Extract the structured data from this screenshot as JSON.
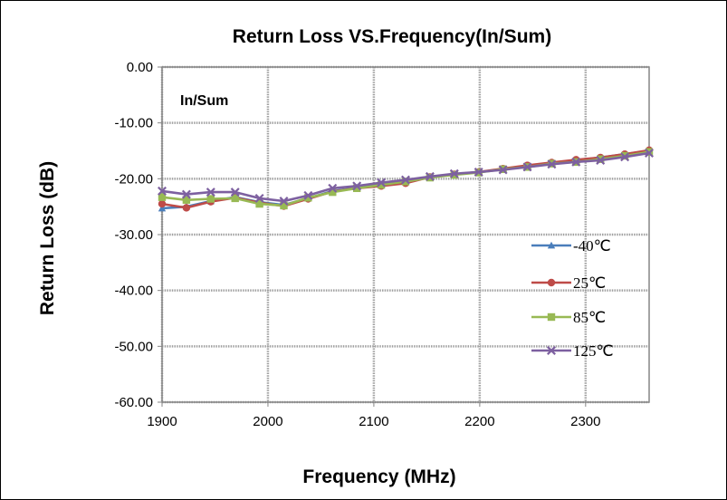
{
  "chart_data": {
    "type": "line",
    "title": "Return Loss VS.Frequency(In/Sum)",
    "xlabel": "Frequency (MHz)",
    "ylabel": "Return Loss (dB)",
    "annotation": "In/Sum",
    "xlim": [
      1900,
      2360
    ],
    "ylim": [
      -60,
      0
    ],
    "x_ticks": [
      1900,
      2000,
      2100,
      2200,
      2300
    ],
    "x_tick_labels": [
      "1900",
      "2000",
      "2100",
      "2200",
      "2300"
    ],
    "y_ticks": [
      0,
      -10,
      -20,
      -30,
      -40,
      -50,
      -60
    ],
    "y_tick_labels": [
      "0.00",
      "-10.00",
      "-20.00",
      "-30.00",
      "-40.00",
      "-50.00",
      "-60.00"
    ],
    "grid": true,
    "legend_position": "right",
    "x": [
      1900,
      1923,
      1946,
      1969,
      1992,
      2015,
      2038,
      2061,
      2084,
      2107,
      2130,
      2153,
      2176,
      2199,
      2222,
      2245,
      2268,
      2291,
      2314,
      2337,
      2360
    ],
    "series": [
      {
        "name": "-40℃",
        "color": "#4a7ebb",
        "marker": "triangle",
        "values": [
          -25.3,
          -25.0,
          -24.0,
          -23.3,
          -24.2,
          -24.7,
          -23.5,
          -22.2,
          -21.6,
          -21.0,
          -20.5,
          -19.7,
          -19.2,
          -18.8,
          -18.3,
          -17.7,
          -17.2,
          -16.7,
          -16.2,
          -15.6,
          -15.0
        ]
      },
      {
        "name": "25℃",
        "color": "#be4b48",
        "marker": "circle",
        "values": [
          -24.5,
          -25.2,
          -24.1,
          -23.4,
          -24.3,
          -24.9,
          -23.6,
          -22.3,
          -21.7,
          -21.3,
          -20.8,
          -19.7,
          -19.2,
          -18.8,
          -18.2,
          -17.6,
          -17.1,
          -16.6,
          -16.2,
          -15.6,
          -14.9
        ]
      },
      {
        "name": "85℃",
        "color": "#98b954",
        "marker": "square",
        "values": [
          -23.3,
          -23.8,
          -23.6,
          -23.5,
          -24.5,
          -24.8,
          -23.4,
          -22.4,
          -21.7,
          -21.1,
          -20.5,
          -19.8,
          -19.3,
          -18.9,
          -18.3,
          -17.9,
          -17.3,
          -17.0,
          -16.5,
          -15.9,
          -15.2
        ]
      },
      {
        "name": "125℃",
        "color": "#7d60a0",
        "marker": "x",
        "values": [
          -22.2,
          -22.8,
          -22.4,
          -22.4,
          -23.5,
          -24.0,
          -23.0,
          -21.7,
          -21.3,
          -20.7,
          -20.2,
          -19.6,
          -19.1,
          -18.8,
          -18.4,
          -17.9,
          -17.4,
          -17.0,
          -16.7,
          -16.1,
          -15.4
        ]
      }
    ]
  }
}
